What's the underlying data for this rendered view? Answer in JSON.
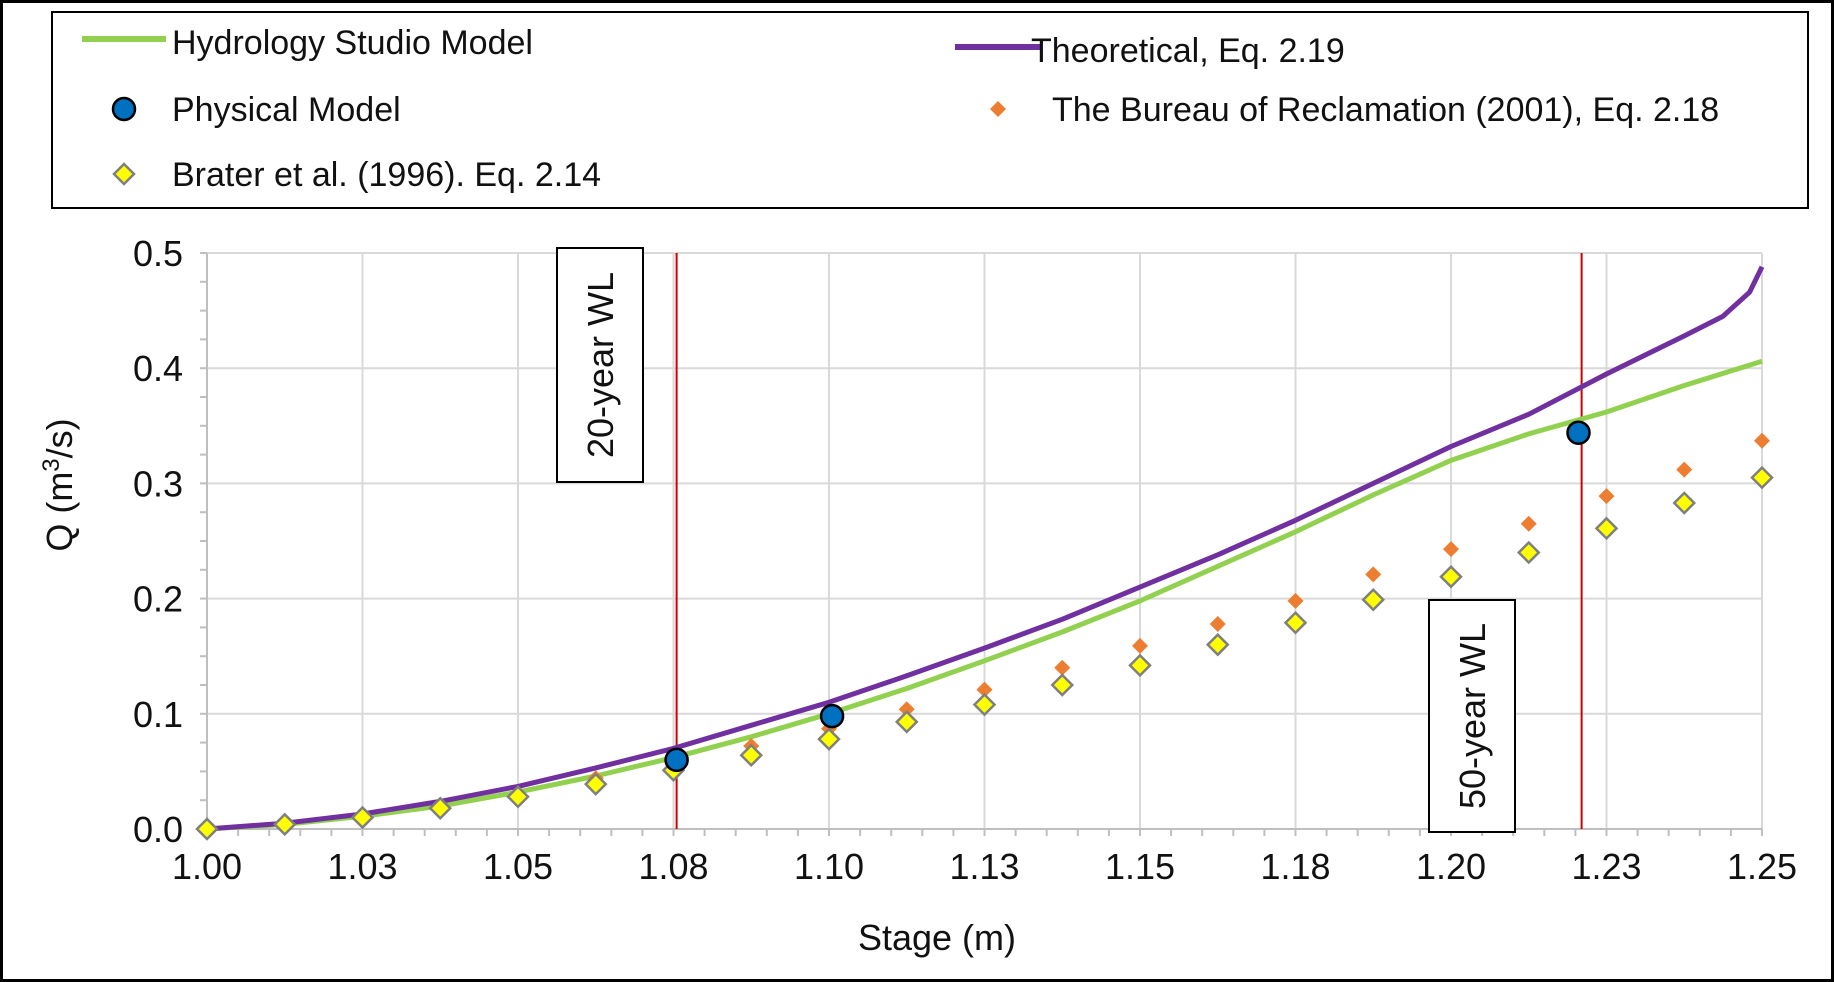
{
  "chart_data": {
    "type": "scatter",
    "xlabel": "Stage (m)",
    "ylabel_main": "Q (m",
    "ylabel_sup": "3",
    "ylabel_tail": "/s)",
    "xlim": [
      1.0,
      1.25
    ],
    "ylim": [
      0.0,
      0.5
    ],
    "x_ticks": [
      1.0,
      1.025,
      1.05,
      1.075,
      1.1,
      1.125,
      1.15,
      1.175,
      1.2,
      1.225,
      1.25
    ],
    "x_tick_labels": [
      "1.00",
      "1.03",
      "1.05",
      "1.08",
      "1.10",
      "1.13",
      "1.15",
      "1.18",
      "1.20",
      "1.23",
      "1.25"
    ],
    "y_ticks": [
      0.0,
      0.1,
      0.2,
      0.3,
      0.4,
      0.5
    ],
    "y_tick_labels": [
      "0.0",
      "0.1",
      "0.2",
      "0.3",
      "0.4",
      "0.5"
    ],
    "grid": true,
    "legend_position": "top",
    "series": [
      {
        "name": "Hydrology Studio Model",
        "kind": "line",
        "color": "#92D050",
        "x": [
          1.0,
          1.0125,
          1.025,
          1.0375,
          1.05,
          1.0625,
          1.075,
          1.0875,
          1.1,
          1.1125,
          1.125,
          1.1375,
          1.15,
          1.1625,
          1.175,
          1.1875,
          1.2,
          1.2125,
          1.225,
          1.2375,
          1.25
        ],
        "y": [
          0.0,
          0.004,
          0.011,
          0.02,
          0.032,
          0.046,
          0.062,
          0.08,
          0.1,
          0.122,
          0.146,
          0.171,
          0.198,
          0.228,
          0.258,
          0.29,
          0.32,
          0.343,
          0.362,
          0.385,
          0.406
        ]
      },
      {
        "name": "Theoretical, Eq. 2.19",
        "kind": "line",
        "color": "#7030A0",
        "x": [
          1.0,
          1.0125,
          1.025,
          1.0375,
          1.05,
          1.0625,
          1.075,
          1.0875,
          1.1,
          1.1125,
          1.125,
          1.1375,
          1.15,
          1.1625,
          1.175,
          1.1875,
          1.2,
          1.2125,
          1.225,
          1.2375,
          1.2437,
          1.248,
          1.25
        ],
        "y": [
          0.0,
          0.005,
          0.013,
          0.024,
          0.037,
          0.053,
          0.07,
          0.09,
          0.11,
          0.133,
          0.157,
          0.182,
          0.21,
          0.238,
          0.268,
          0.3,
          0.332,
          0.36,
          0.395,
          0.428,
          0.445,
          0.466,
          0.488
        ]
      },
      {
        "name": "Physical Model",
        "kind": "marker-circle",
        "color": "#0070C0",
        "x": [
          1.0755,
          1.1005,
          1.2205
        ],
        "y": [
          0.06,
          0.098,
          0.344
        ]
      },
      {
        "name": "The Bureau of Reclamation (2001), Eq. 2.18",
        "kind": "marker-diamond-small",
        "color": "#ED7D31",
        "x": [
          1.0,
          1.0125,
          1.025,
          1.0375,
          1.05,
          1.0625,
          1.075,
          1.0875,
          1.1,
          1.1125,
          1.125,
          1.1375,
          1.15,
          1.1625,
          1.175,
          1.1875,
          1.2,
          1.2125,
          1.225,
          1.2375,
          1.25
        ],
        "y": [
          0.0,
          0.004,
          0.011,
          0.02,
          0.031,
          0.044,
          0.057,
          0.072,
          0.087,
          0.104,
          0.121,
          0.14,
          0.159,
          0.178,
          0.198,
          0.221,
          0.243,
          0.265,
          0.289,
          0.312,
          0.337
        ]
      },
      {
        "name": "Brater et al. (1996). Eq. 2.14",
        "kind": "marker-diamond",
        "color": "#FFFF00",
        "x": [
          1.0,
          1.0125,
          1.025,
          1.0375,
          1.05,
          1.0625,
          1.075,
          1.0875,
          1.1,
          1.1125,
          1.125,
          1.1375,
          1.15,
          1.1625,
          1.175,
          1.1875,
          1.2,
          1.2125,
          1.225,
          1.2375,
          1.25
        ],
        "y": [
          0.0,
          0.004,
          0.01,
          0.018,
          0.028,
          0.039,
          0.051,
          0.064,
          0.078,
          0.093,
          0.108,
          0.125,
          0.142,
          0.16,
          0.179,
          0.199,
          0.219,
          0.24,
          0.261,
          0.283,
          0.305
        ]
      }
    ],
    "annotations": [
      {
        "label": "20-year WL",
        "x": 1.0755
      },
      {
        "label": "50-year WL",
        "x": 1.221
      }
    ]
  }
}
